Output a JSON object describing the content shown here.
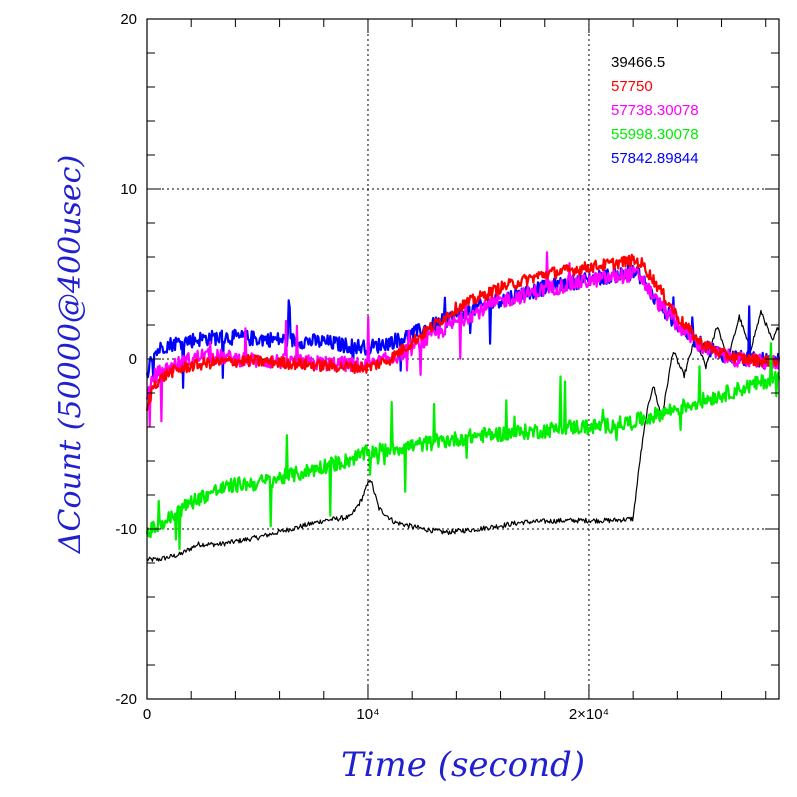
{
  "chart_data": {
    "type": "line",
    "xlabel": "Time (second)",
    "ylabel": "ΔCount (50000@400usec)",
    "xlim": [
      0,
      28600
    ],
    "ylim": [
      -20,
      20
    ],
    "x_ticks": [
      {
        "value": 0,
        "label": "0"
      },
      {
        "value": 10000,
        "label": "10⁴"
      },
      {
        "value": 20000,
        "label": "2×10⁴"
      }
    ],
    "y_ticks": [
      {
        "value": -20,
        "label": "-20"
      },
      {
        "value": -10,
        "label": "-10"
      },
      {
        "value": 0,
        "label": "0"
      },
      {
        "value": 10,
        "label": "10"
      },
      {
        "value": 20,
        "label": "20"
      }
    ],
    "grid": true,
    "legend_position": "top-right",
    "series": [
      {
        "name": "39466.5",
        "color": "#000000",
        "x": [
          0,
          500,
          1500,
          2300,
          3300,
          5000,
          6500,
          8000,
          9200,
          9700,
          10100,
          10500,
          11200,
          12500,
          13500,
          15000,
          17000,
          19000,
          21000,
          22000,
          22300,
          22600,
          22900,
          23300,
          23800,
          24300,
          24800,
          25300,
          25800,
          26300,
          26800,
          27300,
          27800,
          28300,
          28600
        ],
        "values": [
          -11.8,
          -11.8,
          -11.5,
          -10.9,
          -10.9,
          -10.5,
          -10.0,
          -9.5,
          -9.3,
          -8.3,
          -7.0,
          -8.8,
          -9.6,
          -10.0,
          -10.2,
          -10.0,
          -9.6,
          -9.5,
          -9.5,
          -9.4,
          -6.0,
          -3.3,
          -1.5,
          -3.5,
          0.5,
          -1.0,
          1.2,
          -0.5,
          2.0,
          0.0,
          2.5,
          0.5,
          2.8,
          1.0,
          2.0
        ]
      },
      {
        "name": "57750",
        "color": "#ff0000",
        "x": [
          0,
          300,
          1000,
          2000,
          3000,
          4500,
          6000,
          8000,
          10000,
          11000,
          12500,
          14000,
          16000,
          18000,
          20000,
          22000,
          22400,
          23000,
          24000,
          25000,
          26000,
          27000,
          28000,
          28600
        ],
        "values": [
          -3.0,
          -1.5,
          -0.8,
          -0.4,
          -0.2,
          -0.1,
          -0.2,
          -0.4,
          -0.5,
          0.0,
          1.5,
          3.0,
          4.2,
          5.0,
          5.4,
          5.8,
          5.6,
          4.5,
          2.5,
          1.0,
          0.3,
          0.0,
          -0.1,
          -0.1
        ]
      },
      {
        "name": "57738.30078",
        "color": "#ff00ff",
        "x": [
          0,
          300,
          1000,
          1800,
          2500,
          3500,
          5000,
          7000,
          9000,
          10000,
          11000,
          12500,
          14000,
          16000,
          18000,
          20000,
          22000,
          22300,
          23000,
          24000,
          25000,
          26000,
          27000,
          28000,
          28600
        ],
        "values": [
          -2.5,
          -1.0,
          -0.5,
          -0.1,
          0.2,
          0.1,
          -0.1,
          -0.2,
          -0.3,
          -0.4,
          0.0,
          1.0,
          2.2,
          3.4,
          4.1,
          4.6,
          5.0,
          4.9,
          3.5,
          2.0,
          0.8,
          0.2,
          -0.1,
          -0.2,
          -0.2
        ]
      },
      {
        "name": "55998.30078",
        "color": "#00ee00",
        "x": [
          0,
          500,
          1000,
          2000,
          3000,
          4000,
          5000,
          6000,
          7000,
          8000,
          9000,
          10000,
          11000,
          12000,
          13000,
          14000,
          15000,
          16000,
          17000,
          18000,
          19000,
          20000,
          21000,
          22000,
          23000,
          24000,
          25000,
          26000,
          27000,
          28000,
          28600
        ],
        "values": [
          -10.2,
          -9.8,
          -9.4,
          -8.4,
          -7.8,
          -7.4,
          -7.3,
          -7.0,
          -6.7,
          -6.3,
          -6.0,
          -5.5,
          -5.3,
          -5.1,
          -4.9,
          -4.7,
          -4.5,
          -4.4,
          -4.3,
          -4.2,
          -4.0,
          -4.0,
          -3.9,
          -3.7,
          -3.3,
          -2.9,
          -2.5,
          -2.1,
          -1.7,
          -1.3,
          -1.0
        ]
      },
      {
        "name": "57842.89844",
        "color": "#0000ff",
        "x": [
          0,
          300,
          800,
          1500,
          2500,
          3500,
          5000,
          6500,
          8000,
          9000,
          10000,
          10500,
          11500,
          13000,
          14500,
          16000,
          18000,
          20000,
          22000,
          22300,
          23000,
          24000,
          25000,
          26000,
          27000,
          28000,
          28600
        ],
        "values": [
          -0.8,
          0.3,
          0.8,
          1.0,
          1.2,
          1.3,
          1.2,
          1.1,
          1.0,
          0.8,
          0.7,
          0.8,
          1.2,
          2.0,
          2.8,
          3.5,
          4.2,
          4.7,
          5.1,
          4.9,
          3.5,
          2.0,
          0.9,
          0.3,
          0.0,
          -0.1,
          -0.1
        ]
      }
    ]
  }
}
